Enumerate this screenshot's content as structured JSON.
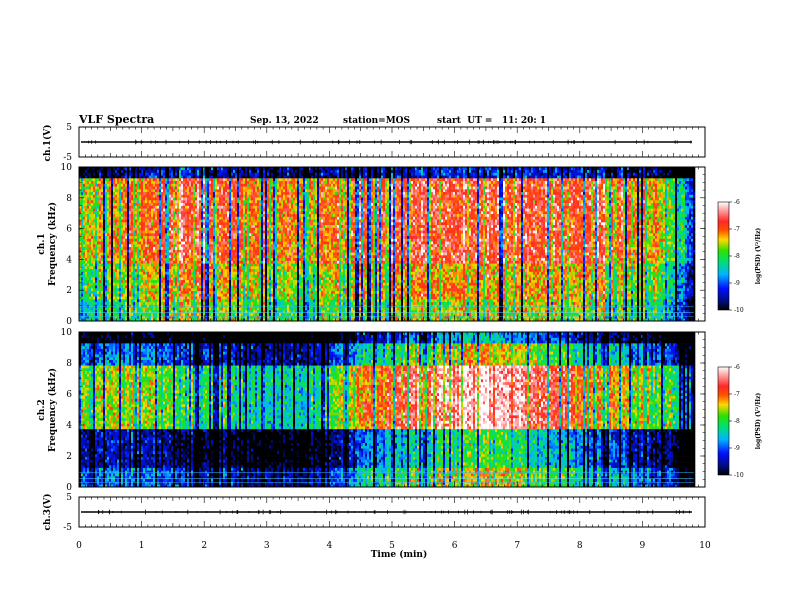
{
  "header": {
    "title": "VLF Spectra",
    "date": "Sep. 13, 2022",
    "station": "station=MOS",
    "start": "start  UT =   11: 20: 1"
  },
  "chart_data": [
    {
      "type": "line",
      "panel": "ch1-waveform",
      "ylabel": "ch.1(V)",
      "ylim": [
        -5,
        5
      ],
      "yticks": [
        "5",
        "-5"
      ],
      "series": [
        {
          "x": [
            0,
            9.82
          ],
          "y": [
            0,
            0
          ]
        }
      ]
    },
    {
      "type": "heatmap",
      "panel": "ch1-spectrogram",
      "ylabel_lines": [
        "ch.1",
        "Frequency (kHz)"
      ],
      "ylim": [
        0,
        10
      ],
      "yticks": [
        "0",
        "2",
        "4",
        "6",
        "8",
        "10"
      ],
      "xlim": [
        0,
        10
      ],
      "data_end_min": 9.82,
      "band_profile": [
        [
          0.25,
          -7.6
        ],
        [
          0.8,
          -7.3
        ],
        [
          1.5,
          -6.8
        ],
        [
          2.5,
          -7.0
        ],
        [
          3.5,
          -7.4
        ],
        [
          4.5,
          -7.0
        ],
        [
          5.5,
          -6.8
        ],
        [
          6.5,
          -6.9
        ],
        [
          7.5,
          -6.9
        ],
        [
          8.5,
          -6.9
        ],
        [
          9.4,
          -7.8
        ],
        [
          9.85,
          -9.6
        ]
      ],
      "colorbar": {
        "label": "log(PSD) (V²/Hz)",
        "range": [
          -10,
          -6
        ],
        "ticks": [
          "-6",
          "-7",
          "-8",
          "-9",
          "-10"
        ]
      }
    },
    {
      "type": "heatmap",
      "panel": "ch2-spectrogram",
      "ylabel_lines": [
        "ch.2",
        "Frequency (kHz)"
      ],
      "ylim": [
        0,
        10
      ],
      "yticks": [
        "0",
        "2",
        "4",
        "6",
        "8",
        "10"
      ],
      "xlim": [
        0,
        10
      ],
      "data_end_min": 9.82,
      "band_profile": [
        [
          0.25,
          -8.0
        ],
        [
          0.8,
          -7.8
        ],
        [
          1.5,
          -8.2
        ],
        [
          2.5,
          -8.4
        ],
        [
          3.5,
          -8.9
        ],
        [
          4.5,
          -7.6
        ],
        [
          5.5,
          -6.6
        ],
        [
          6.5,
          -6.3
        ],
        [
          7.5,
          -7.0
        ],
        [
          8.5,
          -7.6
        ],
        [
          9.4,
          -8.2
        ],
        [
          9.85,
          -9.7
        ]
      ],
      "colorbar": {
        "label": "log(PSD) (V²/Hz)",
        "range": [
          -10,
          -6
        ],
        "ticks": [
          "-6",
          "-7",
          "-8",
          "-9",
          "-10"
        ]
      }
    },
    {
      "type": "line",
      "panel": "ch3-waveform",
      "ylabel": "ch.3(V)",
      "ylim": [
        -5,
        5
      ],
      "yticks": [
        "5",
        "-5"
      ],
      "series": [
        {
          "x": [
            0,
            9.82
          ],
          "y": [
            0,
            0
          ]
        }
      ]
    }
  ],
  "x_axis": {
    "label": "Time (min)",
    "ticks": [
      "0",
      "1",
      "2",
      "3",
      "4",
      "5",
      "6",
      "7",
      "8",
      "9",
      "10"
    ],
    "range": [
      0,
      10
    ]
  },
  "colormap": [
    "#000000",
    "#000c78",
    "#0010ff",
    "#00b4ff",
    "#00e070",
    "#30e000",
    "#ffd800",
    "#ff5000",
    "#ff2828",
    "#ff9c9c",
    "#ffffff"
  ]
}
